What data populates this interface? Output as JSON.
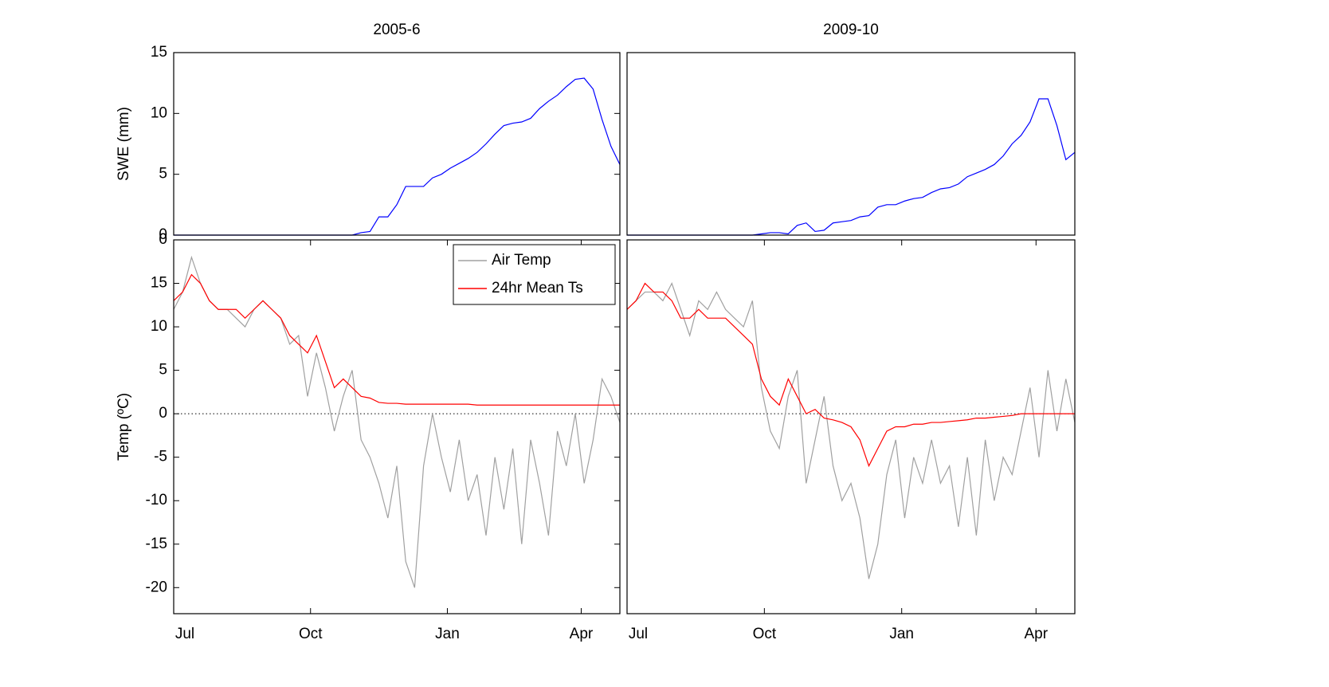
{
  "chart_data": [
    {
      "type": "line",
      "title": "2005-6",
      "ylabel": "SWE (mm)",
      "xlim": [
        0,
        300
      ],
      "ylim": [
        0,
        15
      ],
      "yticks": [
        0,
        5,
        10,
        15
      ],
      "x": [
        0,
        6,
        12,
        18,
        24,
        30,
        36,
        42,
        48,
        54,
        60,
        66,
        72,
        78,
        84,
        90,
        96,
        102,
        108,
        114,
        120,
        126,
        132,
        138,
        144,
        150,
        156,
        162,
        168,
        174,
        180,
        186,
        192,
        198,
        204,
        210,
        216,
        222,
        228,
        234,
        240,
        246,
        252,
        258,
        264,
        270,
        276,
        282,
        288,
        294,
        300
      ],
      "series": [
        {
          "name": "SWE",
          "color": "#0000ff",
          "values": [
            0,
            0,
            0,
            0,
            0,
            0,
            0,
            0,
            0,
            0,
            0,
            0,
            0,
            0,
            0,
            0,
            0,
            0,
            0,
            0,
            0,
            0.2,
            0.3,
            1.5,
            1.5,
            2.5,
            4,
            4,
            4,
            4.7,
            5,
            5.5,
            5.9,
            6.3,
            6.8,
            7.5,
            8.3,
            9,
            9.2,
            9.3,
            9.6,
            10.4,
            11,
            11.5,
            12.2,
            12.8,
            12.9,
            12,
            9.5,
            7.3,
            5.8
          ]
        }
      ]
    },
    {
      "type": "line",
      "title": "2009-10",
      "xlim": [
        0,
        300
      ],
      "ylim": [
        0,
        15
      ],
      "x": [
        0,
        6,
        12,
        18,
        24,
        30,
        36,
        42,
        48,
        54,
        60,
        66,
        72,
        78,
        84,
        90,
        96,
        102,
        108,
        114,
        120,
        126,
        132,
        138,
        144,
        150,
        156,
        162,
        168,
        174,
        180,
        186,
        192,
        198,
        204,
        210,
        216,
        222,
        228,
        234,
        240,
        246,
        252,
        258,
        264,
        270,
        276,
        282,
        288,
        294,
        300
      ],
      "series": [
        {
          "name": "SWE",
          "color": "#0000ff",
          "values": [
            0,
            0,
            0,
            0,
            0,
            0,
            0,
            0,
            0,
            0,
            0,
            0,
            0,
            0,
            0,
            0.1,
            0.2,
            0.2,
            0.1,
            0.8,
            1,
            0.3,
            0.4,
            1,
            1.1,
            1.2,
            1.5,
            1.6,
            2.3,
            2.5,
            2.5,
            2.8,
            3,
            3.1,
            3.5,
            3.8,
            3.9,
            4.2,
            4.8,
            5.1,
            5.4,
            5.8,
            6.5,
            7.5,
            8.2,
            9.3,
            11.2,
            11.2,
            9,
            6.2,
            6.8
          ]
        }
      ]
    },
    {
      "type": "line",
      "ylabel": "Temp (ºC)",
      "xlim": [
        0,
        300
      ],
      "ylim": [
        -23,
        20
      ],
      "xticks": [
        {
          "value": 0,
          "label": "Jul"
        },
        {
          "value": 92,
          "label": "Oct"
        },
        {
          "value": 184,
          "label": "Jan"
        },
        {
          "value": 274,
          "label": "Apr"
        }
      ],
      "yticks": [
        -20,
        -15,
        -10,
        -5,
        0,
        5,
        10,
        15,
        {
          "value": 20,
          "label": "0"
        }
      ],
      "hline": 0,
      "legend": "upper-right",
      "x": [
        0,
        6,
        12,
        18,
        24,
        30,
        36,
        42,
        48,
        54,
        60,
        66,
        72,
        78,
        84,
        90,
        96,
        102,
        108,
        114,
        120,
        126,
        132,
        138,
        144,
        150,
        156,
        162,
        168,
        174,
        180,
        186,
        192,
        198,
        204,
        210,
        216,
        222,
        228,
        234,
        240,
        246,
        252,
        258,
        264,
        270,
        276,
        282,
        288,
        294,
        300
      ],
      "series": [
        {
          "name": "Air Temp",
          "color": "#a0a0a0",
          "values": [
            12,
            14,
            18,
            15,
            13,
            12,
            12,
            11,
            10,
            12,
            13,
            12,
            11,
            8,
            9,
            2,
            7,
            3,
            -2,
            2,
            5,
            -3,
            -5,
            -8,
            -12,
            -6,
            -17,
            -20,
            -6,
            0,
            -5,
            -9,
            -3,
            -10,
            -7,
            -14,
            -5,
            -11,
            -4,
            -15,
            -3,
            -8,
            -14,
            -2,
            -6,
            0,
            -8,
            -3,
            4,
            2,
            -1
          ]
        },
        {
          "name": "24hr Mean Ts",
          "color": "#ff0000",
          "values": [
            13,
            14,
            16,
            15,
            13,
            12,
            12,
            12,
            11,
            12,
            13,
            12,
            11,
            9,
            8,
            7,
            9,
            6,
            3,
            4,
            3,
            2,
            1.8,
            1.3,
            1.2,
            1.2,
            1.1,
            1.1,
            1.1,
            1.1,
            1.1,
            1.1,
            1.1,
            1.1,
            1,
            1,
            1,
            1,
            1,
            1,
            1,
            1,
            1,
            1,
            1,
            1,
            1,
            1,
            1,
            1,
            1
          ]
        }
      ]
    },
    {
      "type": "line",
      "xlim": [
        0,
        300
      ],
      "ylim": [
        -23,
        20
      ],
      "xticks": [
        {
          "value": 0,
          "label": "Jul"
        },
        {
          "value": 92,
          "label": "Oct"
        },
        {
          "value": 184,
          "label": "Jan"
        },
        {
          "value": 274,
          "label": "Apr"
        }
      ],
      "hline": 0,
      "x": [
        0,
        6,
        12,
        18,
        24,
        30,
        36,
        42,
        48,
        54,
        60,
        66,
        72,
        78,
        84,
        90,
        96,
        102,
        108,
        114,
        120,
        126,
        132,
        138,
        144,
        150,
        156,
        162,
        168,
        174,
        180,
        186,
        192,
        198,
        204,
        210,
        216,
        222,
        228,
        234,
        240,
        246,
        252,
        258,
        264,
        270,
        276,
        282,
        288,
        294,
        300
      ],
      "series": [
        {
          "name": "Air Temp",
          "color": "#a0a0a0",
          "values": [
            12,
            13,
            14,
            14,
            13,
            15,
            12,
            9,
            13,
            12,
            14,
            12,
            11,
            10,
            13,
            3,
            -2,
            -4,
            2,
            5,
            -8,
            -3,
            2,
            -6,
            -10,
            -8,
            -12,
            -19,
            -15,
            -7,
            -3,
            -12,
            -5,
            -8,
            -3,
            -8,
            -6,
            -13,
            -5,
            -14,
            -3,
            -10,
            -5,
            -7,
            -2,
            3,
            -5,
            5,
            -2,
            4,
            -1
          ]
        },
        {
          "name": "24hr Mean Ts",
          "color": "#ff0000",
          "values": [
            12,
            13,
            15,
            14,
            14,
            13,
            11,
            11,
            12,
            11,
            11,
            11,
            10,
            9,
            8,
            4,
            2,
            1,
            4,
            2,
            0,
            0.5,
            -0.5,
            -0.7,
            -1,
            -1.5,
            -3,
            -6,
            -4,
            -2,
            -1.5,
            -1.5,
            -1.2,
            -1.2,
            -1,
            -1,
            -0.9,
            -0.8,
            -0.7,
            -0.5,
            -0.5,
            -0.4,
            -0.3,
            -0.2,
            0,
            0,
            0,
            0,
            0,
            0,
            0
          ]
        }
      ]
    }
  ]
}
